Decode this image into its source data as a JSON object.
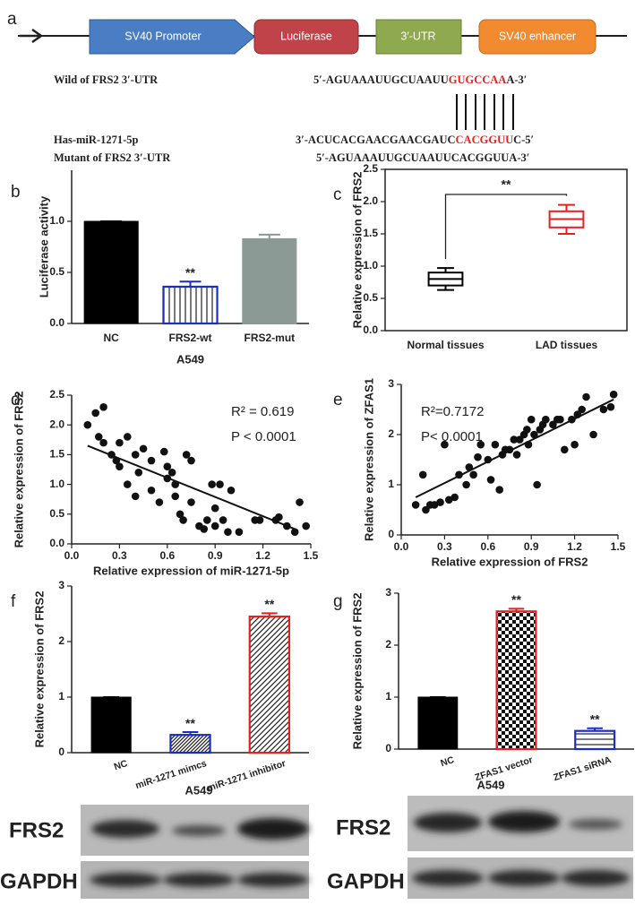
{
  "diagram": {
    "panel": "a",
    "elements": [
      "SV40 Promoter",
      "Luciferase",
      "3′-UTR",
      "SV40 enhancer"
    ],
    "sequences": [
      {
        "label": "Wild of FRS2 3′-UTR",
        "parts": [
          "5′-AGUAAAUUGCUAAUU",
          "GUGCCAA",
          "A-3′"
        ]
      },
      {
        "label": "Has-miR-1271-5p",
        "parts": [
          "3′-ACUCACGAACGAACGAUC",
          "CACGGUU",
          "C-5′"
        ]
      },
      {
        "label": "Mutant of FRS2 3′-UTR",
        "parts": [
          "5′-AGUAAAUUGCUAAUUCACGGUUA-3′"
        ]
      }
    ]
  },
  "chart_data": [
    {
      "type": "bar",
      "panel": "b",
      "ylabel": "Luciferase activity",
      "xlabel": "A549",
      "categories": [
        "NC",
        "FRS2-wt",
        "FRS2-mut"
      ],
      "values": [
        1.0,
        0.36,
        0.83
      ],
      "errors": [
        0,
        0.05,
        0.04
      ],
      "significance": [
        null,
        "**",
        null
      ],
      "colors": [
        "#000000",
        "#1c2fc4",
        "#8c9a96"
      ],
      "patterns": [
        "solid",
        "vertical",
        "solid"
      ],
      "ylim": [
        0,
        1.5
      ],
      "yticks": [
        {
          "value": 0,
          "label": "0.0"
        },
        0.5,
        {
          "value": 1,
          "label": "1.0"
        }
      ]
    },
    {
      "type": "box",
      "panel": "c",
      "ylabel": "Relative expression of FRS2",
      "categories": [
        "Normal tissues",
        "LAD tissues"
      ],
      "min": [
        0.63,
        1.5
      ],
      "q1": [
        0.7,
        1.6
      ],
      "median": [
        0.8,
        1.73
      ],
      "q3": [
        0.9,
        1.85
      ],
      "max": [
        0.97,
        1.95
      ],
      "colors": [
        "#000000",
        "#e8201e"
      ],
      "annotation": "**",
      "ylim": [
        0,
        2.5
      ],
      "yticks": [
        {
          "value": 0,
          "label": "0.0"
        },
        0.5,
        {
          "value": 1,
          "label": "1.0"
        },
        1.5,
        {
          "value": 2,
          "label": "2.0"
        },
        2.5
      ]
    },
    {
      "type": "scatter",
      "panel": "d",
      "xlabel": "Relative expression of miR-1271-5p",
      "ylabel": "Relative expression of FRS2",
      "annotations": [
        "R² = 0.619",
        "P < 0.0001"
      ],
      "x": [
        0.1,
        0.15,
        0.2,
        0.17,
        0.2,
        0.25,
        0.28,
        0.3,
        0.3,
        0.35,
        0.35,
        0.4,
        0.42,
        0.45,
        0.4,
        0.5,
        0.5,
        0.55,
        0.58,
        0.6,
        0.6,
        0.63,
        0.65,
        0.65,
        0.68,
        0.7,
        0.72,
        0.75,
        0.75,
        0.8,
        0.83,
        0.85,
        0.88,
        0.9,
        0.9,
        0.93,
        0.95,
        0.98,
        1.0,
        1.05,
        1.15,
        1.18,
        1.28,
        1.3,
        1.35,
        1.4,
        1.43,
        1.47
      ],
      "y": [
        2.0,
        2.2,
        2.3,
        1.8,
        1.7,
        1.5,
        1.4,
        1.7,
        1.3,
        1.8,
        1.0,
        1.5,
        1.2,
        1.6,
        0.8,
        1.4,
        0.9,
        0.7,
        1.55,
        1.3,
        1.1,
        1.2,
        1.0,
        0.8,
        0.5,
        0.4,
        1.5,
        0.7,
        1.4,
        0.3,
        0.25,
        0.4,
        1.0,
        0.3,
        0.6,
        1.0,
        0.4,
        0.2,
        0.9,
        0.2,
        0.4,
        0.4,
        0.4,
        0.45,
        0.3,
        0.2,
        0.7,
        0.3
      ],
      "fit": {
        "x": [
          0.1,
          1.4
        ],
        "y": [
          1.65,
          0.25
        ]
      },
      "xlim": [
        0,
        1.5
      ],
      "xticks": [
        {
          "value": 0,
          "label": "0.0"
        },
        0.3,
        0.6,
        0.9,
        1.2,
        1.5
      ],
      "ylim": [
        0,
        2.5
      ],
      "yticks": [
        {
          "value": 0,
          "label": "0.0"
        },
        0.5,
        {
          "value": 1,
          "label": "1.0"
        },
        1.5,
        {
          "value": 2,
          "label": "2.0"
        },
        2.5
      ]
    },
    {
      "type": "scatter",
      "panel": "e",
      "xlabel": "Relative expression of FRS2",
      "ylabel": "Relative expression of ZFAS1",
      "annotations": [
        "R²=0.7172",
        "P< 0.0001"
      ],
      "x": [
        0.1,
        0.15,
        0.17,
        0.2,
        0.23,
        0.27,
        0.3,
        0.33,
        0.37,
        0.4,
        0.45,
        0.47,
        0.5,
        0.53,
        0.55,
        0.6,
        0.62,
        0.65,
        0.68,
        0.7,
        0.72,
        0.75,
        0.78,
        0.8,
        0.82,
        0.85,
        0.87,
        0.88,
        0.9,
        0.92,
        0.94,
        0.96,
        0.98,
        1.0,
        1.05,
        1.08,
        1.1,
        1.13,
        1.18,
        1.2,
        1.22,
        1.25,
        1.28,
        1.33,
        1.4,
        1.45,
        1.47
      ],
      "y": [
        0.6,
        1.2,
        0.5,
        0.6,
        0.6,
        0.65,
        1.8,
        0.7,
        0.75,
        1.2,
        1.0,
        1.35,
        1.2,
        1.55,
        1.8,
        1.5,
        1.1,
        1.8,
        0.9,
        1.6,
        1.7,
        1.7,
        1.9,
        1.6,
        1.9,
        2.0,
        2.1,
        1.8,
        2.3,
        2.0,
        1.0,
        2.1,
        2.2,
        2.3,
        2.2,
        2.3,
        2.3,
        1.7,
        2.3,
        1.8,
        2.4,
        2.5,
        2.75,
        2.0,
        2.5,
        2.55,
        2.8
      ],
      "fit": {
        "x": [
          0.1,
          1.47
        ],
        "y": [
          0.75,
          2.7
        ]
      },
      "xlim": [
        0,
        1.5
      ],
      "xticks": [
        {
          "value": 0,
          "label": "0.0"
        },
        0.3,
        0.6,
        0.9,
        1.2,
        1.5
      ],
      "ylim": [
        0,
        3
      ],
      "yticks": [
        0,
        1,
        2,
        3
      ]
    },
    {
      "type": "bar",
      "panel": "f",
      "ylabel": "Relative expression of FRS2",
      "categories": [
        "NC",
        "miR-1271 mimcs",
        "miR-1271 inhibitor"
      ],
      "values": [
        1.0,
        0.32,
        2.45
      ],
      "errors": [
        0,
        0.05,
        0.06
      ],
      "significance": [
        null,
        "**",
        "**"
      ],
      "colors": [
        "#000000",
        "#1c2fc4",
        "#e8201e"
      ],
      "patterns": [
        "solid",
        "diagonal-dense",
        "diagonal"
      ],
      "ylim": [
        0,
        3
      ],
      "yticks": [
        0,
        1,
        2,
        3
      ]
    },
    {
      "type": "bar",
      "panel": "g",
      "ylabel": "Relative expression of FRS2",
      "categories": [
        "NC",
        "ZFAS1 vector",
        "ZFAS1 siRNA"
      ],
      "values": [
        1.0,
        2.65,
        0.35
      ],
      "errors": [
        0,
        0.05,
        0.05
      ],
      "significance": [
        null,
        "**",
        "**"
      ],
      "colors": [
        "#000000",
        "#e8201e",
        "#1c2fc4"
      ],
      "patterns": [
        "solid",
        "checker",
        "horizontal"
      ],
      "ylim": [
        0,
        3
      ],
      "yticks": [
        0,
        1,
        2,
        3
      ]
    }
  ],
  "blots": [
    {
      "title": "A549",
      "rows": [
        "FRS2",
        "GAPDH"
      ]
    },
    {
      "title": "A549",
      "rows": [
        "FRS2",
        "GAPDH"
      ]
    }
  ]
}
